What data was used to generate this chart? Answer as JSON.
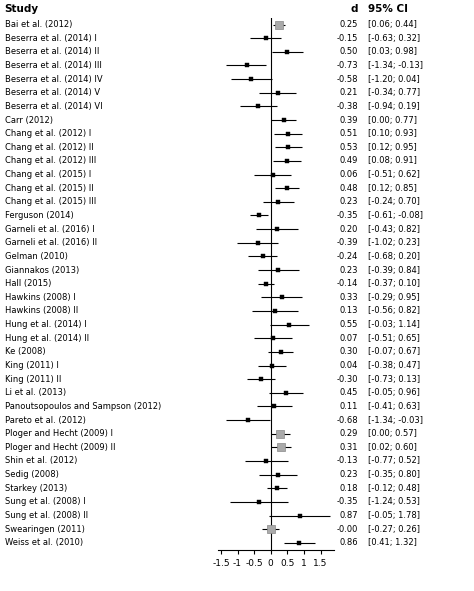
{
  "studies": [
    "Bai et al. (2012)",
    "Beserra et al. (2014) I",
    "Beserra et al. (2014) II",
    "Beserra et al. (2014) III",
    "Beserra et al. (2014) IV",
    "Beserra et al. (2014) V",
    "Beserra et al. (2014) VI",
    "Carr (2012)",
    "Chang et al. (2012) I",
    "Chang et al. (2012) II",
    "Chang et al. (2012) III",
    "Chang et al. (2015) I",
    "Chang et al. (2015) II",
    "Chang et al. (2015) III",
    "Ferguson (2014)",
    "Garneli et al. (2016) I",
    "Garneli et al. (2016) II",
    "Gelman (2010)",
    "Giannakos (2013)",
    "Hall (2015)",
    "Hawkins (2008) I",
    "Hawkins (2008) II",
    "Hung et al. (2014) I",
    "Hung et al. (2014) II",
    "Ke (2008)",
    "King (2011) I",
    "King (2011) II",
    "Li et al. (2013)",
    "Panoutsopoulos and Sampson (2012)",
    "Pareto et al. (2012)",
    "Ploger and Hecht (2009) I",
    "Ploger and Hecht (2009) II",
    "Shin et al. (2012)",
    "Sedig (2008)",
    "Starkey (2013)",
    "Sung et al. (2008) I",
    "Sung et al. (2008) II",
    "Swearingen (2011)",
    "Weiss et al. (2010)"
  ],
  "d": [
    0.25,
    -0.15,
    0.5,
    -0.73,
    -0.58,
    0.21,
    -0.38,
    0.39,
    0.51,
    0.53,
    0.49,
    0.06,
    0.48,
    0.23,
    -0.35,
    0.2,
    -0.39,
    -0.24,
    0.23,
    -0.14,
    0.33,
    0.13,
    0.55,
    0.07,
    0.3,
    0.04,
    -0.3,
    0.45,
    0.11,
    -0.68,
    0.29,
    0.31,
    -0.13,
    0.23,
    0.18,
    -0.35,
    0.87,
    -0.0,
    0.86
  ],
  "ci_low": [
    0.06,
    -0.63,
    0.03,
    -1.34,
    -1.2,
    -0.34,
    -0.94,
    0.0,
    0.1,
    0.12,
    0.08,
    -0.51,
    0.12,
    -0.24,
    -0.61,
    -0.43,
    -1.02,
    -0.68,
    -0.39,
    -0.37,
    -0.29,
    -0.56,
    -0.03,
    -0.51,
    -0.07,
    -0.38,
    -0.73,
    -0.05,
    -0.41,
    -1.34,
    0.0,
    0.02,
    -0.77,
    -0.35,
    -0.12,
    -1.24,
    -0.05,
    -0.27,
    0.41
  ],
  "ci_high": [
    0.44,
    0.32,
    0.98,
    -0.13,
    0.04,
    0.77,
    0.19,
    0.77,
    0.93,
    0.95,
    0.91,
    0.62,
    0.85,
    0.7,
    -0.08,
    0.82,
    0.23,
    0.2,
    0.84,
    0.1,
    0.95,
    0.82,
    1.14,
    0.65,
    0.67,
    0.47,
    0.13,
    0.96,
    0.63,
    -0.03,
    0.57,
    0.6,
    0.52,
    0.8,
    0.48,
    0.53,
    1.78,
    0.26,
    1.32
  ],
  "d_str": [
    "0.25",
    "-0.15",
    "0.50",
    "-0.73",
    "-0.58",
    "0.21",
    "-0.38",
    "0.39",
    "0.51",
    "0.53",
    "0.49",
    "0.06",
    "0.48",
    "0.23",
    "-0.35",
    "0.20",
    "-0.39",
    "-0.24",
    "0.23",
    "-0.14",
    "0.33",
    "0.13",
    "0.55",
    "0.07",
    "0.30",
    "0.04",
    "-0.30",
    "0.45",
    "0.11",
    "-0.68",
    "0.29",
    "0.31",
    "-0.13",
    "0.23",
    "0.18",
    "-0.35",
    "0.87",
    "-0.00",
    "0.86"
  ],
  "ci_str": [
    "[0.06; 0.44]",
    "[-0.63; 0.32]",
    "[0.03; 0.98]",
    "[-1.34; -0.13]",
    "[-1.20; 0.04]",
    "[-0.34; 0.77]",
    "[-0.94; 0.19]",
    "[0.00; 0.77]",
    "[0.10; 0.93]",
    "[0.12; 0.95]",
    "[0.08; 0.91]",
    "[-0.51; 0.62]",
    "[0.12; 0.85]",
    "[-0.24; 0.70]",
    "[-0.61; -0.08]",
    "[-0.43; 0.82]",
    "[-1.02; 0.23]",
    "[-0.68; 0.20]",
    "[-0.39; 0.84]",
    "[-0.37; 0.10]",
    "[-0.29; 0.95]",
    "[-0.56; 0.82]",
    "[-0.03; 1.14]",
    "[-0.51; 0.65]",
    "[-0.07; 0.67]",
    "[-0.38; 0.47]",
    "[-0.73; 0.13]",
    "[-0.05; 0.96]",
    "[-0.41; 0.63]",
    "[-1.34; -0.03]",
    "[0.00; 0.57]",
    "[0.02; 0.60]",
    "[-0.77; 0.52]",
    "[-0.35; 0.80]",
    "[-0.12; 0.48]",
    "[-1.24; 0.53]",
    "[-0.05; 1.78]",
    "[-0.27; 0.26]",
    "[0.41; 1.32]"
  ],
  "xlim": [
    -1.6,
    1.9
  ],
  "xticks": [
    -1.5,
    -1.0,
    -0.5,
    0.0,
    0.5,
    1.0,
    1.5
  ],
  "xtick_labels": [
    "-1.5",
    "-1",
    "-0.5",
    "0",
    "0.5",
    "1",
    "1.5"
  ],
  "special_marker_indices": [
    0,
    30,
    31,
    37
  ],
  "title_study": "Study",
  "title_d": "d",
  "title_ci": "95% CI"
}
